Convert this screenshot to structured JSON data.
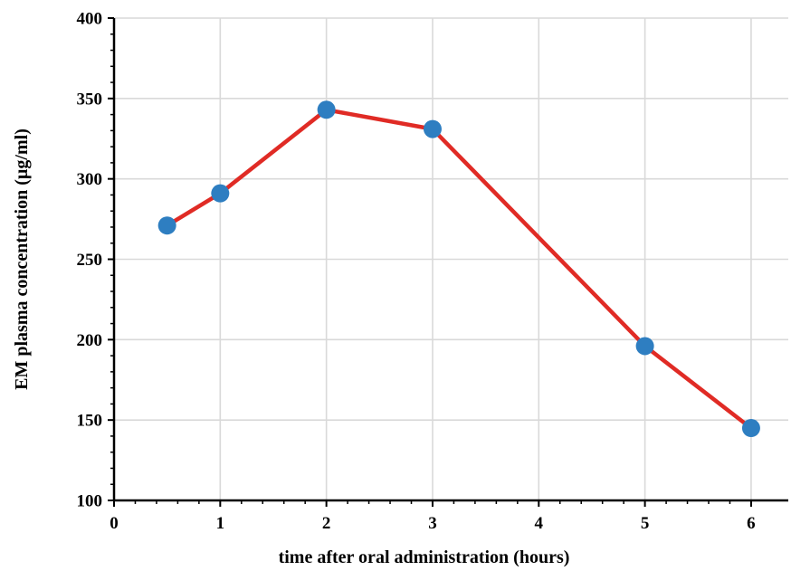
{
  "chart_data": {
    "type": "line",
    "title": "",
    "xlabel": "time after oral administration (hours)",
    "ylabel": "EM plasma concentration (µg/ml)",
    "xlim": [
      0,
      6.35
    ],
    "ylim": [
      100,
      400
    ],
    "xticks": [
      0,
      1,
      2,
      3,
      4,
      5,
      6
    ],
    "yticks": [
      100,
      150,
      200,
      250,
      300,
      350,
      400
    ],
    "grid": true,
    "legend": "none",
    "series": [
      {
        "x": [
          0.5,
          1,
          2,
          3,
          5,
          6
        ],
        "y": [
          271,
          291,
          343,
          331,
          196,
          145
        ],
        "line_color": "#e02b25",
        "marker_color": "#2e7ec1"
      }
    ]
  }
}
